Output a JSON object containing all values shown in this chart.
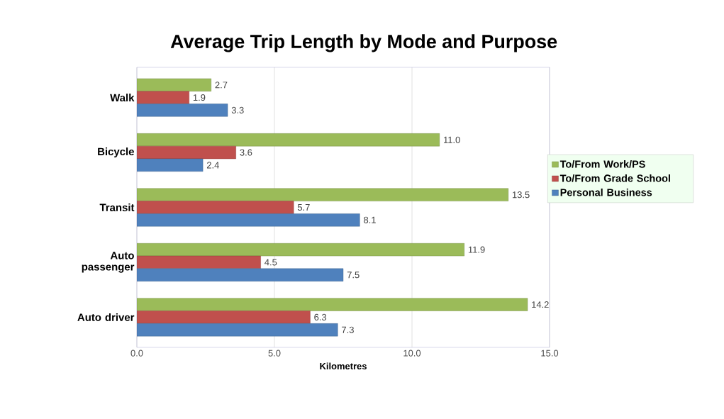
{
  "chart_data": {
    "type": "bar",
    "orientation": "horizontal",
    "title": "Average Trip Length by Mode and Purpose",
    "xlabel": "Kilometres",
    "categories": [
      "Walk",
      "Bicycle",
      "Transit",
      "Auto passenger",
      "Auto driver"
    ],
    "series": [
      {
        "name": "To/From Work/PS",
        "color": "#9bbb59",
        "values": [
          2.7,
          11.0,
          13.5,
          11.9,
          14.2
        ],
        "value_labels": [
          "2.7",
          "11.0",
          "13.5",
          "11.9",
          "14.2"
        ]
      },
      {
        "name": "To/From Grade School",
        "color": "#c0504d",
        "values": [
          1.9,
          3.6,
          5.7,
          4.5,
          6.3
        ],
        "value_labels": [
          "1.9",
          "3.6",
          "5.7",
          "4.5",
          "6.3"
        ]
      },
      {
        "name": "Personal Business",
        "color": "#4f81bd",
        "values": [
          3.3,
          2.4,
          8.1,
          7.5,
          7.3
        ],
        "value_labels": [
          "3.3",
          "2.4",
          "8.1",
          "7.5",
          "7.3"
        ]
      }
    ],
    "xlim": [
      0,
      15
    ],
    "xticks": [
      {
        "value": 0,
        "label": "0.0"
      },
      {
        "value": 5,
        "label": "5.0"
      },
      {
        "value": 10,
        "label": "10.0"
      },
      {
        "value": 15,
        "label": "15.0"
      }
    ],
    "grid": "x",
    "legend": "right"
  }
}
